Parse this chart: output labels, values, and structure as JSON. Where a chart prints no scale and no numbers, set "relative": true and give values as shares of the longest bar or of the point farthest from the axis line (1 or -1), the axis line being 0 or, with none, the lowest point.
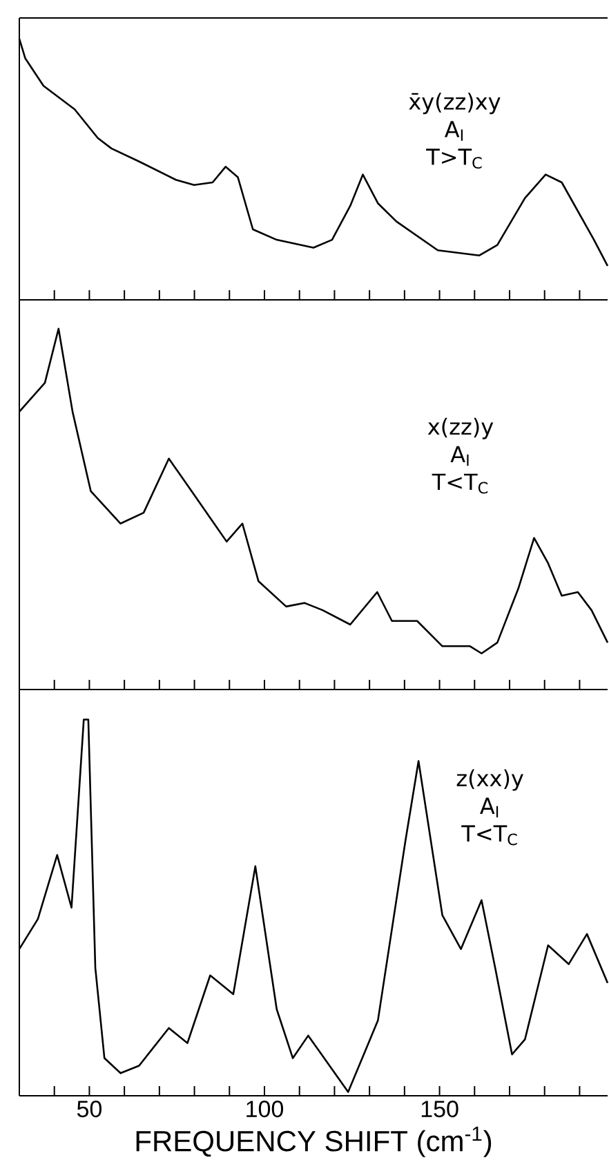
{
  "chart_data": [
    {
      "type": "line",
      "relative": true,
      "color": "#000000",
      "xlim": [
        30,
        198
      ],
      "tick_labels": false,
      "xticks": [
        {
          "value": 40,
          "label": null
        },
        50,
        {
          "value": 60,
          "label": null
        },
        {
          "value": 70,
          "label": null
        },
        {
          "value": 80,
          "label": null
        },
        {
          "value": 90,
          "label": null
        },
        100,
        {
          "value": 110,
          "label": null
        },
        {
          "value": 120,
          "label": null
        },
        {
          "value": 130,
          "label": null
        },
        {
          "value": 140,
          "label": null
        },
        150,
        {
          "value": 160,
          "label": null
        },
        {
          "value": 170,
          "label": null
        },
        {
          "value": 180,
          "label": null
        },
        {
          "value": 190,
          "label": null
        }
      ],
      "annotations": [
        "x̄y(zz)xy",
        "A$_{I}$",
        "T>T$_{C}$"
      ],
      "x": [
        30,
        31.7,
        36.9,
        45.8,
        52.4,
        56.3,
        64.2,
        74.7,
        79.9,
        85.2,
        88.9,
        92.4,
        96.7,
        103.5,
        114,
        119.3,
        124.5,
        128.1,
        132.4,
        137.7,
        149.5,
        161.3,
        166.5,
        174.4,
        180.3,
        184.9,
        194.1,
        198
      ],
      "values": [
        1.0,
        0.925,
        0.82,
        0.73,
        0.62,
        0.58,
        0.53,
        0.46,
        0.44,
        0.45,
        0.51,
        0.47,
        0.27,
        0.23,
        0.2,
        0.23,
        0.36,
        0.48,
        0.37,
        0.3,
        0.19,
        0.17,
        0.21,
        0.39,
        0.48,
        0.45,
        0.23,
        0.13
      ]
    },
    {
      "type": "line",
      "relative": true,
      "color": "#000000",
      "xlim": [
        30,
        198
      ],
      "tick_labels": false,
      "xticks": [
        {
          "value": 40,
          "label": null
        },
        50,
        {
          "value": 60,
          "label": null
        },
        {
          "value": 70,
          "label": null
        },
        {
          "value": 80,
          "label": null
        },
        {
          "value": 90,
          "label": null
        },
        100,
        {
          "value": 110,
          "label": null
        },
        {
          "value": 120,
          "label": null
        },
        {
          "value": 130,
          "label": null
        },
        {
          "value": 140,
          "label": null
        },
        150,
        {
          "value": 160,
          "label": null
        },
        {
          "value": 170,
          "label": null
        },
        {
          "value": 180,
          "label": null
        },
        {
          "value": 190,
          "label": null
        }
      ],
      "annotations": [
        "x(zz)y",
        "A$_{I}$",
        "T<T$_{C}$"
      ],
      "x": [
        30,
        37.3,
        41.2,
        45.2,
        50.4,
        58.9,
        65.5,
        72.7,
        79.9,
        89.2,
        93.7,
        98.3,
        106.2,
        111.4,
        116.6,
        124.5,
        132.2,
        136.4,
        143.6,
        150.8,
        158.7,
        162,
        166.5,
        172.5,
        177,
        181,
        184.9,
        189.5,
        193.4,
        198
      ],
      "values": [
        0.77,
        0.85,
        1.0,
        0.77,
        0.55,
        0.46,
        0.49,
        0.64,
        0.54,
        0.41,
        0.46,
        0.3,
        0.23,
        0.24,
        0.22,
        0.18,
        0.27,
        0.19,
        0.19,
        0.12,
        0.12,
        0.1,
        0.13,
        0.28,
        0.42,
        0.35,
        0.26,
        0.27,
        0.22,
        0.13
      ]
    },
    {
      "type": "line",
      "relative": true,
      "color": "#000000",
      "xlim": [
        30,
        198
      ],
      "tick_labels": "x",
      "xlabel": "FREQUENCY SHIFT (cm$^{-1}$)",
      "xticks": [
        {
          "value": 40,
          "label": null
        },
        50,
        {
          "value": 60,
          "label": null
        },
        {
          "value": 70,
          "label": null
        },
        {
          "value": 80,
          "label": null
        },
        {
          "value": 90,
          "label": null
        },
        100,
        {
          "value": 110,
          "label": null
        },
        {
          "value": 120,
          "label": null
        },
        {
          "value": 130,
          "label": null
        },
        {
          "value": 140,
          "label": null
        },
        150,
        {
          "value": 160,
          "label": null
        },
        {
          "value": 170,
          "label": null
        },
        {
          "value": 180,
          "label": null
        },
        {
          "value": 190,
          "label": null
        }
      ],
      "annotations": [
        "z(xx)y",
        "A$_{I}$",
        "T<T$_{C}$"
      ],
      "x": [
        30,
        35.3,
        40.8,
        44.9,
        48.4,
        49.7,
        51.7,
        54.3,
        58.9,
        64.2,
        72.7,
        78,
        84.5,
        91.1,
        97.4,
        103.5,
        108.1,
        112.5,
        123.9,
        132.4,
        140.3,
        144,
        150.8,
        156.1,
        162,
        165.9,
        170.7,
        174.4,
        181,
        186.9,
        192.1,
        198
      ],
      "values": [
        0.39,
        0.47,
        0.64,
        0.5,
        1.0,
        1.0,
        0.34,
        0.1,
        0.06,
        0.08,
        0.18,
        0.14,
        0.32,
        0.27,
        0.61,
        0.23,
        0.1,
        0.16,
        0.01,
        0.2,
        0.68,
        0.89,
        0.48,
        0.39,
        0.52,
        0.34,
        0.11,
        0.15,
        0.4,
        0.35,
        0.43,
        0.3
      ]
    }
  ]
}
